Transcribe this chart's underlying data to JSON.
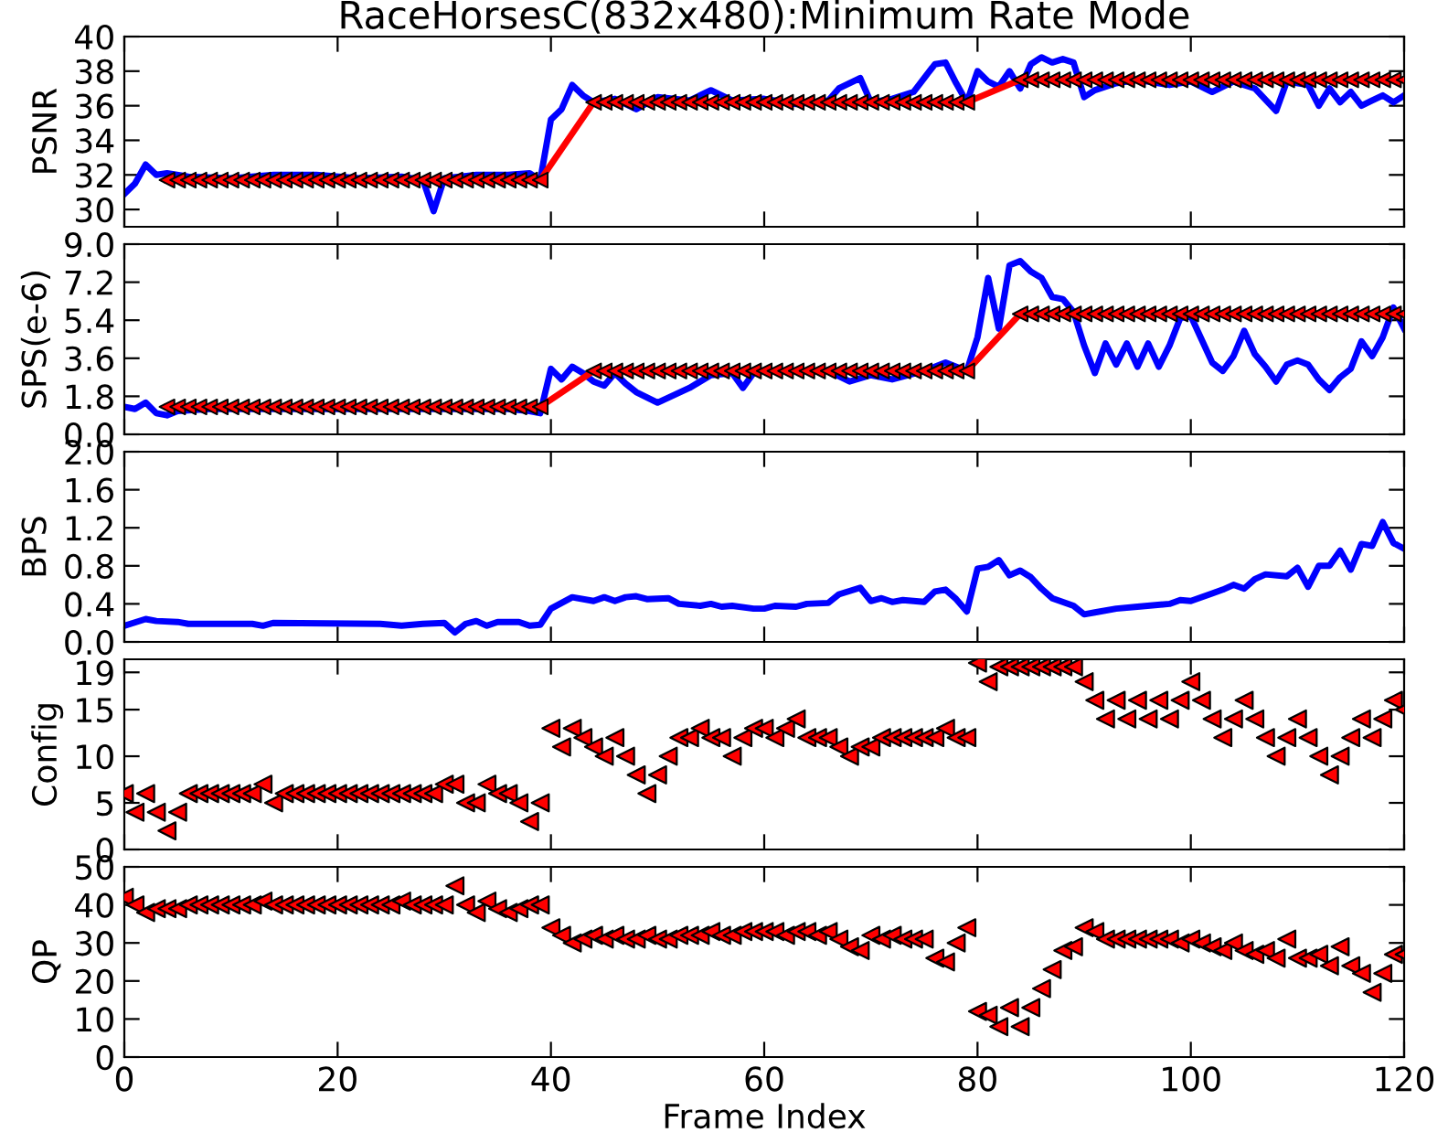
{
  "chart_data": [
    {
      "type": "line",
      "title": "RaceHorsesC(832x480):Minimum Rate Mode",
      "ylabel": "PSNR",
      "xlim": [
        0,
        120
      ],
      "xticks": [
        0,
        20,
        40,
        60,
        80,
        100,
        120
      ],
      "ylim": [
        29,
        40
      ],
      "yticks": [
        30,
        32,
        34,
        36,
        38,
        40
      ],
      "tick_labels": "y",
      "line_style": "solid",
      "series": [
        {
          "color": "#0000ff",
          "x": [
            0,
            1,
            2,
            3,
            4,
            6,
            10,
            14,
            18,
            22,
            26,
            28,
            29,
            30,
            33,
            36,
            38,
            39,
            40,
            41,
            42,
            43,
            44,
            46,
            48,
            50,
            53,
            55,
            57,
            60,
            63,
            66,
            67,
            69,
            70,
            72,
            74,
            76,
            77,
            78,
            79,
            80,
            81,
            82,
            83,
            84,
            85,
            86,
            87,
            88,
            89,
            90,
            91,
            93,
            95,
            98,
            100,
            102,
            104,
            106,
            108,
            109,
            111,
            112,
            113,
            114,
            115,
            116,
            117,
            118,
            119,
            120
          ],
          "values": [
            30.9,
            31.5,
            32.6,
            32.0,
            32.1,
            31.9,
            31.8,
            32.0,
            32.0,
            31.8,
            31.9,
            31.7,
            29.9,
            31.8,
            32.0,
            32.0,
            32.1,
            31.7,
            35.2,
            35.8,
            37.2,
            36.6,
            36.2,
            36.4,
            35.8,
            36.5,
            36.3,
            36.9,
            36.3,
            36.4,
            36.1,
            36.3,
            37.0,
            37.6,
            36.2,
            36.4,
            36.8,
            38.4,
            38.5,
            37.3,
            36.2,
            38.0,
            37.4,
            37.1,
            38.0,
            37.0,
            38.4,
            38.8,
            38.5,
            38.7,
            38.5,
            36.5,
            36.9,
            37.3,
            37.5,
            37.2,
            37.4,
            36.8,
            37.4,
            37.0,
            35.7,
            37.4,
            37.2,
            36.0,
            37.0,
            36.2,
            36.8,
            36.0,
            36.3,
            36.6,
            36.2,
            36.6
          ]
        },
        {
          "color": "#ff0000",
          "marker": "triangle",
          "x": [
            4,
            5,
            6,
            7,
            8,
            9,
            10,
            11,
            12,
            13,
            14,
            15,
            16,
            17,
            18,
            19,
            20,
            21,
            22,
            23,
            24,
            25,
            26,
            27,
            28,
            29,
            30,
            31,
            32,
            33,
            34,
            35,
            36,
            37,
            38,
            39,
            44,
            45,
            46,
            47,
            48,
            49,
            50,
            51,
            52,
            53,
            54,
            55,
            56,
            57,
            58,
            59,
            60,
            61,
            62,
            63,
            64,
            65,
            66,
            67,
            68,
            69,
            70,
            71,
            72,
            73,
            74,
            75,
            76,
            77,
            78,
            79,
            84,
            85,
            86,
            87,
            88,
            89,
            90,
            91,
            92,
            93,
            94,
            95,
            96,
            97,
            98,
            99,
            100,
            101,
            102,
            103,
            104,
            105,
            106,
            107,
            108,
            109,
            110,
            111,
            112,
            113,
            114,
            115,
            116,
            117,
            118,
            119,
            120
          ],
          "values": [
            31.7,
            31.7,
            31.7,
            31.7,
            31.7,
            31.7,
            31.7,
            31.7,
            31.7,
            31.7,
            31.7,
            31.7,
            31.7,
            31.7,
            31.7,
            31.7,
            31.7,
            31.7,
            31.7,
            31.7,
            31.7,
            31.7,
            31.7,
            31.7,
            31.7,
            31.7,
            31.7,
            31.7,
            31.7,
            31.7,
            31.7,
            31.7,
            31.7,
            31.7,
            31.7,
            31.7,
            36.2,
            36.2,
            36.2,
            36.2,
            36.2,
            36.2,
            36.2,
            36.2,
            36.2,
            36.2,
            36.2,
            36.2,
            36.2,
            36.2,
            36.2,
            36.2,
            36.2,
            36.2,
            36.2,
            36.2,
            36.2,
            36.2,
            36.2,
            36.2,
            36.2,
            36.2,
            36.2,
            36.2,
            36.2,
            36.2,
            36.2,
            36.2,
            36.2,
            36.2,
            36.2,
            36.2,
            37.5,
            37.5,
            37.5,
            37.5,
            37.5,
            37.5,
            37.5,
            37.5,
            37.5,
            37.5,
            37.5,
            37.5,
            37.5,
            37.5,
            37.5,
            37.5,
            37.5,
            37.5,
            37.5,
            37.5,
            37.5,
            37.5,
            37.5,
            37.5,
            37.5,
            37.5,
            37.5,
            37.5,
            37.5,
            37.5,
            37.5,
            37.5,
            37.5,
            37.5,
            37.5,
            37.5,
            37.5
          ]
        }
      ]
    },
    {
      "type": "line",
      "ylabel": "SPS(e-6)",
      "xlim": [
        0,
        120
      ],
      "xticks": [
        0,
        20,
        40,
        60,
        80,
        100,
        120
      ],
      "ylim": [
        0,
        9
      ],
      "yticks": [
        {
          "value": 0,
          "label": "0.0"
        },
        {
          "value": 1.8,
          "label": "1.8"
        },
        {
          "value": 3.6,
          "label": "3.6"
        },
        {
          "value": 5.4,
          "label": "5.4"
        },
        {
          "value": 7.2,
          "label": "7.2"
        },
        {
          "value": 9,
          "label": "9.0"
        }
      ],
      "tick_labels": "y",
      "line_style": "solid",
      "series": [
        {
          "color": "#0000ff",
          "x": [
            0,
            1,
            2,
            3,
            4,
            5,
            8,
            12,
            16,
            20,
            24,
            28,
            32,
            36,
            38,
            39,
            40,
            41,
            42,
            43,
            44,
            45,
            46,
            47,
            48,
            50,
            53,
            55,
            57,
            58,
            59,
            62,
            66,
            68,
            70,
            72,
            75,
            77,
            79,
            80,
            81,
            82,
            83,
            84,
            85,
            86,
            87,
            88,
            89,
            90,
            91,
            92,
            93,
            94,
            95,
            96,
            97,
            98,
            99,
            100,
            101,
            102,
            103,
            104,
            105,
            106,
            107,
            108,
            109,
            110,
            111,
            112,
            113,
            114,
            115,
            116,
            117,
            118,
            119,
            120
          ],
          "values": [
            1.3,
            1.2,
            1.5,
            1.0,
            0.9,
            1.1,
            1.2,
            1.2,
            1.2,
            1.2,
            1.2,
            1.2,
            1.2,
            1.2,
            1.1,
            1.0,
            3.1,
            2.6,
            3.2,
            2.9,
            2.5,
            2.3,
            2.9,
            2.4,
            2.0,
            1.5,
            2.2,
            2.8,
            2.9,
            2.2,
            2.9,
            null,
            3.0,
            2.5,
            2.8,
            2.6,
            3.0,
            3.4,
            3.0,
            4.6,
            7.4,
            5.0,
            8.0,
            8.2,
            7.7,
            7.4,
            6.5,
            6.4,
            5.8,
            4.2,
            2.9,
            4.3,
            3.3,
            4.3,
            3.2,
            4.3,
            3.2,
            4.2,
            5.5,
            5.6,
            4.5,
            3.4,
            3.0,
            3.7,
            4.9,
            3.8,
            3.2,
            2.5,
            3.3,
            3.5,
            3.3,
            2.6,
            2.1,
            2.7,
            3.1,
            4.4,
            3.7,
            4.6,
            6.0,
            5.0
          ]
        },
        {
          "color": "#ff0000",
          "marker": "triangle",
          "x": [
            4,
            5,
            6,
            7,
            8,
            9,
            10,
            11,
            12,
            13,
            14,
            15,
            16,
            17,
            18,
            19,
            20,
            21,
            22,
            23,
            24,
            25,
            26,
            27,
            28,
            29,
            30,
            31,
            32,
            33,
            34,
            35,
            36,
            37,
            38,
            39,
            44,
            45,
            46,
            47,
            48,
            49,
            50,
            51,
            52,
            53,
            54,
            55,
            56,
            57,
            58,
            59,
            60,
            61,
            62,
            63,
            64,
            65,
            66,
            67,
            68,
            69,
            70,
            71,
            72,
            73,
            74,
            75,
            76,
            77,
            78,
            79,
            84,
            85,
            86,
            87,
            88,
            89,
            90,
            91,
            92,
            93,
            94,
            95,
            96,
            97,
            98,
            99,
            100,
            101,
            102,
            103,
            104,
            105,
            106,
            107,
            108,
            109,
            110,
            111,
            112,
            113,
            114,
            115,
            116,
            117,
            118,
            119,
            120
          ],
          "values": [
            1.3,
            1.3,
            1.3,
            1.3,
            1.3,
            1.3,
            1.3,
            1.3,
            1.3,
            1.3,
            1.3,
            1.3,
            1.3,
            1.3,
            1.3,
            1.3,
            1.3,
            1.3,
            1.3,
            1.3,
            1.3,
            1.3,
            1.3,
            1.3,
            1.3,
            1.3,
            1.3,
            1.3,
            1.3,
            1.3,
            1.3,
            1.3,
            1.3,
            1.3,
            1.3,
            1.3,
            3.0,
            3.0,
            3.0,
            3.0,
            3.0,
            3.0,
            3.0,
            3.0,
            3.0,
            3.0,
            3.0,
            3.0,
            3.0,
            3.0,
            3.0,
            3.0,
            3.0,
            3.0,
            3.0,
            3.0,
            3.0,
            3.0,
            3.0,
            3.0,
            3.0,
            3.0,
            3.0,
            3.0,
            3.0,
            3.0,
            3.0,
            3.0,
            3.0,
            3.0,
            3.0,
            3.0,
            5.7,
            5.7,
            5.7,
            5.7,
            5.7,
            5.7,
            5.7,
            5.7,
            5.7,
            5.7,
            5.7,
            5.7,
            5.7,
            5.7,
            5.7,
            5.7,
            5.7,
            5.7,
            5.7,
            5.7,
            5.7,
            5.7,
            5.7,
            5.7,
            5.7,
            5.7,
            5.7,
            5.7,
            5.7,
            5.7,
            5.7,
            5.7,
            5.7,
            5.7,
            5.7,
            5.7,
            5.7
          ]
        }
      ]
    },
    {
      "type": "line",
      "ylabel": "BPS",
      "xlim": [
        0,
        120
      ],
      "xticks": [
        0,
        20,
        40,
        60,
        80,
        100,
        120
      ],
      "ylim": [
        0,
        2
      ],
      "yticks": [
        {
          "value": 0,
          "label": "0.0"
        },
        {
          "value": 0.4,
          "label": "0.4"
        },
        {
          "value": 0.8,
          "label": "0.8"
        },
        {
          "value": 1.2,
          "label": "1.2"
        },
        {
          "value": 1.6,
          "label": "1.6"
        },
        {
          "value": 2,
          "label": "2.0"
        }
      ],
      "tick_labels": "y",
      "line_style": "solid",
      "series": [
        {
          "color": "#0000ff",
          "x": [
            0,
            2,
            3,
            5,
            6,
            12,
            13,
            14,
            24,
            26,
            28,
            30,
            31,
            32,
            33,
            34,
            35,
            37,
            38,
            39,
            40,
            42,
            44,
            45,
            46,
            47,
            48,
            49,
            51,
            52,
            54,
            55,
            56,
            57,
            59,
            60,
            61,
            63,
            64,
            66,
            67,
            69,
            70,
            71,
            72,
            73,
            75,
            76,
            77,
            78,
            79,
            80,
            81,
            82,
            83,
            84,
            85,
            86,
            87,
            89,
            90,
            91,
            93,
            95,
            98,
            99,
            100,
            102,
            103,
            104,
            105,
            106,
            107,
            109,
            110,
            111,
            112,
            113,
            114,
            115,
            116,
            117,
            118,
            119,
            120
          ],
          "values": [
            0.17,
            0.24,
            0.22,
            0.21,
            0.19,
            0.19,
            0.17,
            0.2,
            0.19,
            0.17,
            0.19,
            0.2,
            0.1,
            0.19,
            0.22,
            0.17,
            0.21,
            0.21,
            0.17,
            0.18,
            0.35,
            0.47,
            0.43,
            0.47,
            0.43,
            0.47,
            0.48,
            0.45,
            0.46,
            0.4,
            0.38,
            0.4,
            0.37,
            0.38,
            0.35,
            0.35,
            0.38,
            0.37,
            0.4,
            0.41,
            0.5,
            0.57,
            0.43,
            0.46,
            0.42,
            0.44,
            0.42,
            0.53,
            0.55,
            0.45,
            0.32,
            0.77,
            0.79,
            0.86,
            0.7,
            0.75,
            0.68,
            0.56,
            0.46,
            0.38,
            0.29,
            0.31,
            0.35,
            0.37,
            0.4,
            0.44,
            0.43,
            0.51,
            0.55,
            0.6,
            0.56,
            0.66,
            0.71,
            0.69,
            0.78,
            0.58,
            0.8,
            0.8,
            0.96,
            0.76,
            1.03,
            1.01,
            1.26,
            1.04,
            0.98
          ]
        }
      ]
    },
    {
      "type": "scatter",
      "ylabel": "Config",
      "xlim": [
        0,
        120
      ],
      "xticks": [
        0,
        20,
        40,
        60,
        80,
        100,
        120
      ],
      "ylim": [
        0,
        20.4
      ],
      "yticks": [
        0,
        5,
        10,
        15,
        19
      ],
      "tick_labels": "y",
      "marker": "triangle",
      "series": [
        {
          "color": "#ff0000",
          "x": [
            0,
            1,
            2,
            3,
            4,
            5,
            6,
            7,
            8,
            9,
            10,
            11,
            12,
            13,
            14,
            15,
            16,
            17,
            18,
            19,
            20,
            21,
            22,
            23,
            24,
            25,
            26,
            27,
            28,
            29,
            30,
            31,
            32,
            33,
            34,
            35,
            36,
            37,
            38,
            39,
            40,
            41,
            42,
            43,
            44,
            45,
            46,
            47,
            48,
            49,
            50,
            51,
            52,
            53,
            54,
            55,
            56,
            57,
            58,
            59,
            60,
            61,
            62,
            63,
            64,
            65,
            66,
            67,
            68,
            69,
            70,
            71,
            72,
            73,
            74,
            75,
            76,
            77,
            78,
            79,
            80,
            81,
            82,
            83,
            84,
            85,
            86,
            87,
            88,
            89,
            90,
            91,
            92,
            93,
            94,
            95,
            96,
            97,
            98,
            99,
            100,
            101,
            102,
            103,
            104,
            105,
            106,
            107,
            108,
            109,
            110,
            111,
            112,
            113,
            114,
            115,
            116,
            117,
            118,
            119,
            120
          ],
          "values": [
            6,
            4,
            6,
            4,
            2,
            4,
            6,
            6,
            6,
            6,
            6,
            6,
            6,
            7,
            5,
            6,
            6,
            6,
            6,
            6,
            6,
            6,
            6,
            6,
            6,
            6,
            6,
            6,
            6,
            6,
            7,
            7,
            5,
            5,
            7,
            6,
            6,
            5,
            3,
            5,
            13,
            11,
            13,
            12,
            11,
            10,
            12,
            10,
            8,
            6,
            8,
            10,
            12,
            12,
            13,
            12,
            12,
            10,
            12,
            13,
            13,
            12,
            13,
            14,
            12,
            12,
            12,
            11,
            10,
            11,
            11,
            12,
            12,
            12,
            12,
            12,
            12,
            13,
            12,
            12,
            20,
            18,
            19.6,
            19.6,
            19.6,
            19.6,
            19.6,
            19.6,
            19.6,
            19.6,
            18,
            16,
            14,
            16,
            14,
            16,
            14,
            16,
            14,
            16,
            18,
            16,
            14,
            12,
            14,
            16,
            14,
            12,
            10,
            12,
            14,
            12,
            10,
            8,
            10,
            12,
            14,
            12,
            14,
            16,
            15
          ]
        }
      ]
    },
    {
      "type": "scatter",
      "ylabel": "QP",
      "xlabel": "Frame Index",
      "xlim": [
        0,
        120
      ],
      "xticks": [
        0,
        20,
        40,
        60,
        80,
        100,
        120
      ],
      "ylim": [
        0,
        50
      ],
      "yticks": [
        0,
        10,
        20,
        30,
        40,
        50
      ],
      "marker": "triangle",
      "series": [
        {
          "color": "#ff0000",
          "x": [
            0,
            1,
            2,
            3,
            4,
            5,
            6,
            7,
            8,
            9,
            10,
            11,
            12,
            13,
            14,
            15,
            16,
            17,
            18,
            19,
            20,
            21,
            22,
            23,
            24,
            25,
            26,
            27,
            28,
            29,
            30,
            31,
            32,
            33,
            34,
            35,
            36,
            37,
            38,
            39,
            40,
            41,
            42,
            43,
            44,
            45,
            46,
            47,
            48,
            49,
            50,
            51,
            52,
            53,
            54,
            55,
            56,
            57,
            58,
            59,
            60,
            61,
            62,
            63,
            64,
            65,
            66,
            67,
            68,
            69,
            70,
            71,
            72,
            73,
            74,
            75,
            76,
            77,
            78,
            79,
            80,
            81,
            82,
            83,
            84,
            85,
            86,
            87,
            88,
            89,
            90,
            91,
            92,
            93,
            94,
            95,
            96,
            97,
            98,
            99,
            100,
            101,
            102,
            103,
            104,
            105,
            106,
            107,
            108,
            109,
            110,
            111,
            112,
            113,
            114,
            115,
            116,
            117,
            118,
            119,
            120
          ],
          "values": [
            42,
            40,
            38,
            39,
            39,
            39,
            40,
            40,
            40,
            40,
            40,
            40,
            40,
            41,
            40,
            40,
            40,
            40,
            40,
            40,
            40,
            40,
            40,
            40,
            40,
            40,
            41,
            40,
            40,
            40,
            40,
            45,
            40,
            38,
            41,
            39,
            38,
            39,
            40,
            40,
            34,
            32,
            30,
            31,
            32,
            31,
            32,
            31,
            31,
            32,
            31,
            31,
            32,
            32,
            32,
            33,
            32,
            32,
            33,
            33,
            33,
            33,
            32,
            33,
            33,
            32,
            33,
            31,
            29,
            28,
            32,
            31,
            32,
            31,
            31,
            31,
            26,
            25,
            30,
            34,
            12,
            11,
            8,
            13,
            8,
            13,
            18,
            23,
            28,
            29,
            34,
            33,
            31,
            31,
            31,
            31,
            31,
            31,
            31,
            30,
            31,
            30,
            29,
            28,
            30,
            28,
            27,
            28,
            26,
            31,
            26,
            26,
            27,
            24,
            29,
            24,
            22,
            17,
            22,
            27,
            27
          ]
        }
      ]
    }
  ]
}
